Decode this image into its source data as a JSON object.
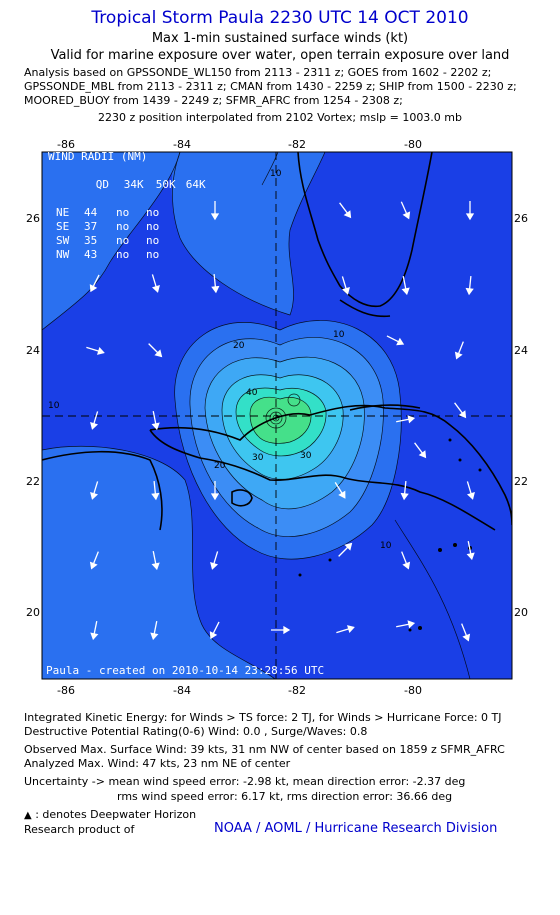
{
  "header": {
    "title": "Tropical Storm Paula 2230 UTC 14 OCT 2010",
    "subtitle": "Max 1-min sustained surface winds (kt)",
    "validity": "Valid for marine exposure over water, open terrain exposure over land",
    "analysis_lines": [
      "Analysis based on GPSSONDE_WL150 from 2113 - 2311 z; GOES from 1602 - 2202 z;",
      "GPSSONDE_MBL from 2113 - 2311 z; CMAN from 1430 - 2259 z; SHIP from 1500 - 2230 z;",
      "MOORED_BUOY from 1439 - 2249 z; SFMR_AFRC from 1254 - 2308 z;"
    ],
    "position_note": "2230 z position interpolated from 2102 Vortex; mslp = 1003.0 mb"
  },
  "map": {
    "lon_ticks": [
      "-86",
      "-84",
      "-82",
      "-80"
    ],
    "lat_ticks": [
      "26",
      "24",
      "22",
      "20"
    ],
    "contour_labels": [
      "10",
      "10",
      "10",
      "20",
      "20",
      "30",
      "30",
      "40",
      "10"
    ],
    "wind_radii": {
      "title": "WIND RADII (NM)",
      "header": [
        "QD",
        "34K",
        "50K",
        "64K"
      ],
      "rows": [
        [
          "NE",
          "44",
          "no",
          "no"
        ],
        [
          "SE",
          "37",
          "no",
          "no"
        ],
        [
          "SW",
          "35",
          "no",
          "no"
        ],
        [
          "NW",
          "43",
          "no",
          "no"
        ]
      ]
    },
    "credit": "Paula - created on 2010-10-14 23:28:56 UTC",
    "colors": {
      "outer_blue": "#1a3fe6",
      "mid_blue": "#2a70f0",
      "light_blue": "#3c8df5",
      "cyan": "#3ec6f0",
      "teal": "#33e0c8",
      "green": "#45e08a",
      "coast": "#000000",
      "arrow": "#ffffff"
    }
  },
  "footer": {
    "ike": "Integrated Kinetic Energy:  for Winds > TS force: 2 TJ,  for Winds > Hurricane Force: 0 TJ",
    "dpr": "Destructive Potential Rating(0-6)   Wind: 0.0 , Surge/Waves: 0.8",
    "observed": "Observed Max. Surface Wind: 39 kts, 31 nm NW of center based on 1859 z SFMR_AFRC",
    "analyzed": "Analyzed Max. Wind: 47 kts, 23 nm NE of center",
    "uncert1": "Uncertainty -> mean wind speed error:  -2.98 kt,   mean direction error:  -2.37 deg",
    "uncert2": "rms wind speed error: 6.17 kt,   rms direction error: 36.66 deg",
    "dwh": ": denotes Deepwater Horizon",
    "research": "Research product of",
    "org": "NOAA / AOML / Hurricane Research Division"
  }
}
